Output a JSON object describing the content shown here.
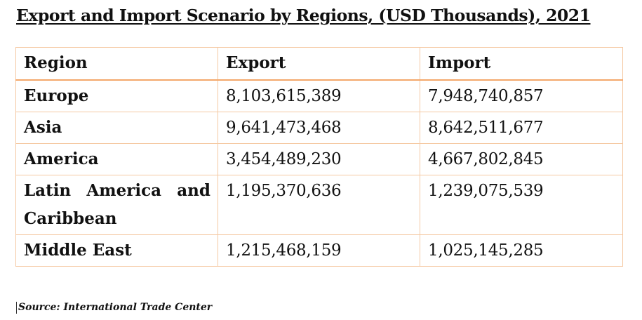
{
  "title": "Export and Import Scenario by Regions, (USD Thousands), 2021",
  "table": {
    "headers": [
      "Region",
      "Export",
      "Import"
    ],
    "rows": [
      {
        "region": "Europe",
        "export": "8,103,615,389",
        "import": "7,948,740,857"
      },
      {
        "region": "Asia",
        "export": "9,641,473,468",
        "import": "8,642,511,677"
      },
      {
        "region": "America",
        "export": "3,454,489,230",
        "import": "4,667,802,845"
      },
      {
        "region": "Latin America and Caribbean",
        "export": "1,195,370,636",
        "import": "1,239,075,539"
      },
      {
        "region": "Middle East",
        "export": "1,215,468,159",
        "import": "1,025,145,285"
      }
    ]
  },
  "source": "Source: International Trade Center",
  "colors": {
    "border": "#f5c9a3",
    "header_rule": "#f4a86b"
  }
}
